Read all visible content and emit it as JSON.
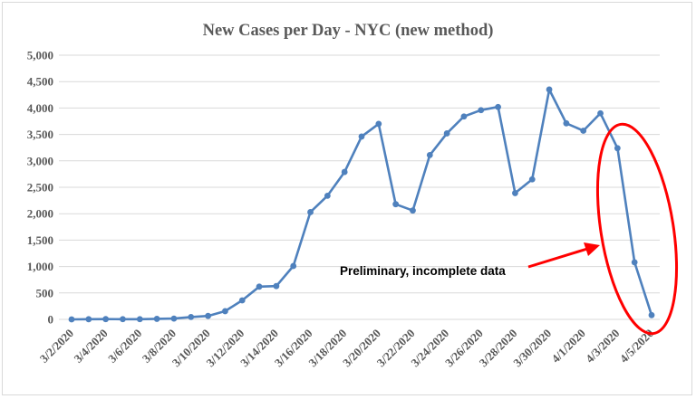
{
  "chart_data": {
    "type": "line",
    "title": "New Cases per Day - NYC (new method)",
    "xlabel": "",
    "ylabel": "",
    "ylim": [
      0,
      5000
    ],
    "yticks": [
      0,
      500,
      1000,
      1500,
      2000,
      2500,
      3000,
      3500,
      4000,
      4500,
      5000
    ],
    "ytick_labels": [
      "0",
      "500",
      "1,000",
      "1,500",
      "2,000",
      "2,500",
      "3,000",
      "3,500",
      "4,000",
      "4,500",
      "5,000"
    ],
    "grid": true,
    "x": [
      "3/2/2020",
      "3/3/2020",
      "3/4/2020",
      "3/5/2020",
      "3/6/2020",
      "3/7/2020",
      "3/8/2020",
      "3/9/2020",
      "3/10/2020",
      "3/11/2020",
      "3/12/2020",
      "3/13/2020",
      "3/14/2020",
      "3/15/2020",
      "3/16/2020",
      "3/17/2020",
      "3/18/2020",
      "3/19/2020",
      "3/20/2020",
      "3/21/2020",
      "3/22/2020",
      "3/23/2020",
      "3/24/2020",
      "3/25/2020",
      "3/26/2020",
      "3/27/2020",
      "3/28/2020",
      "3/29/2020",
      "3/30/2020",
      "3/31/2020",
      "4/1/2020",
      "4/2/2020",
      "4/3/2020",
      "4/4/2020",
      "4/5/2020"
    ],
    "xtick_labels": [
      "3/2/2020",
      "3/4/2020",
      "3/6/2020",
      "3/8/2020",
      "3/10/2020",
      "3/12/2020",
      "3/14/2020",
      "3/16/2020",
      "3/18/2020",
      "3/20/2020",
      "3/22/2020",
      "3/24/2020",
      "3/26/2020",
      "3/28/2020",
      "3/30/2020",
      "4/1/2020",
      "4/3/2020",
      "4/5/2020"
    ],
    "series": [
      {
        "values": [
          0,
          3,
          5,
          4,
          4,
          10,
          15,
          45,
          65,
          155,
          360,
          620,
          630,
          1010,
          2030,
          2340,
          2790,
          3460,
          3700,
          2180,
          2060,
          3110,
          3520,
          3840,
          3960,
          4020,
          2390,
          2650,
          4350,
          3710,
          3570,
          3900,
          3240,
          1080,
          80
        ],
        "color": "#4f81bd"
      }
    ],
    "annotations": [
      {
        "text": "Preliminary, incomplete data",
        "arrow_color": "#ff0000",
        "highlight": "ellipse around last three points",
        "highlight_color": "#ff0000"
      }
    ]
  }
}
